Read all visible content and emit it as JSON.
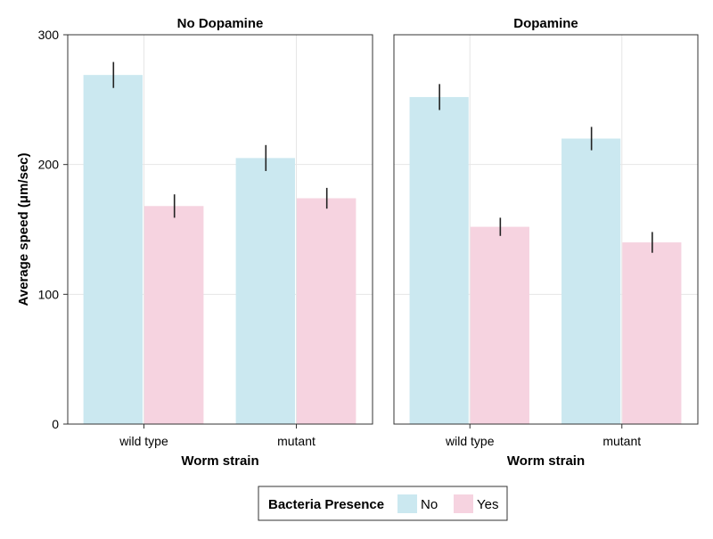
{
  "chart_data": {
    "type": "bar",
    "ylabel": "Average speed (μm/sec)",
    "xlabel": "Worm strain",
    "ylim": [
      0,
      300
    ],
    "yticks": [
      0,
      100,
      200,
      300
    ],
    "grid": true,
    "categories": [
      "wild type",
      "mutant"
    ],
    "legend": {
      "title": "Bacteria Presence",
      "placement": "bottom",
      "entries": [
        {
          "label": "No",
          "color": "#cbe8f0"
        },
        {
          "label": "Yes",
          "color": "#f6d3e0"
        }
      ]
    },
    "panels": [
      {
        "title": "No Dopamine",
        "series": [
          {
            "name": "No",
            "values": [
              269,
              205
            ],
            "errors": [
              10,
              10
            ]
          },
          {
            "name": "Yes",
            "values": [
              168,
              174
            ],
            "errors": [
              9,
              8
            ]
          }
        ]
      },
      {
        "title": "Dopamine",
        "series": [
          {
            "name": "No",
            "values": [
              252,
              220
            ],
            "errors": [
              10,
              9
            ]
          },
          {
            "name": "Yes",
            "values": [
              152,
              140
            ],
            "errors": [
              7,
              8
            ]
          }
        ]
      }
    ]
  }
}
